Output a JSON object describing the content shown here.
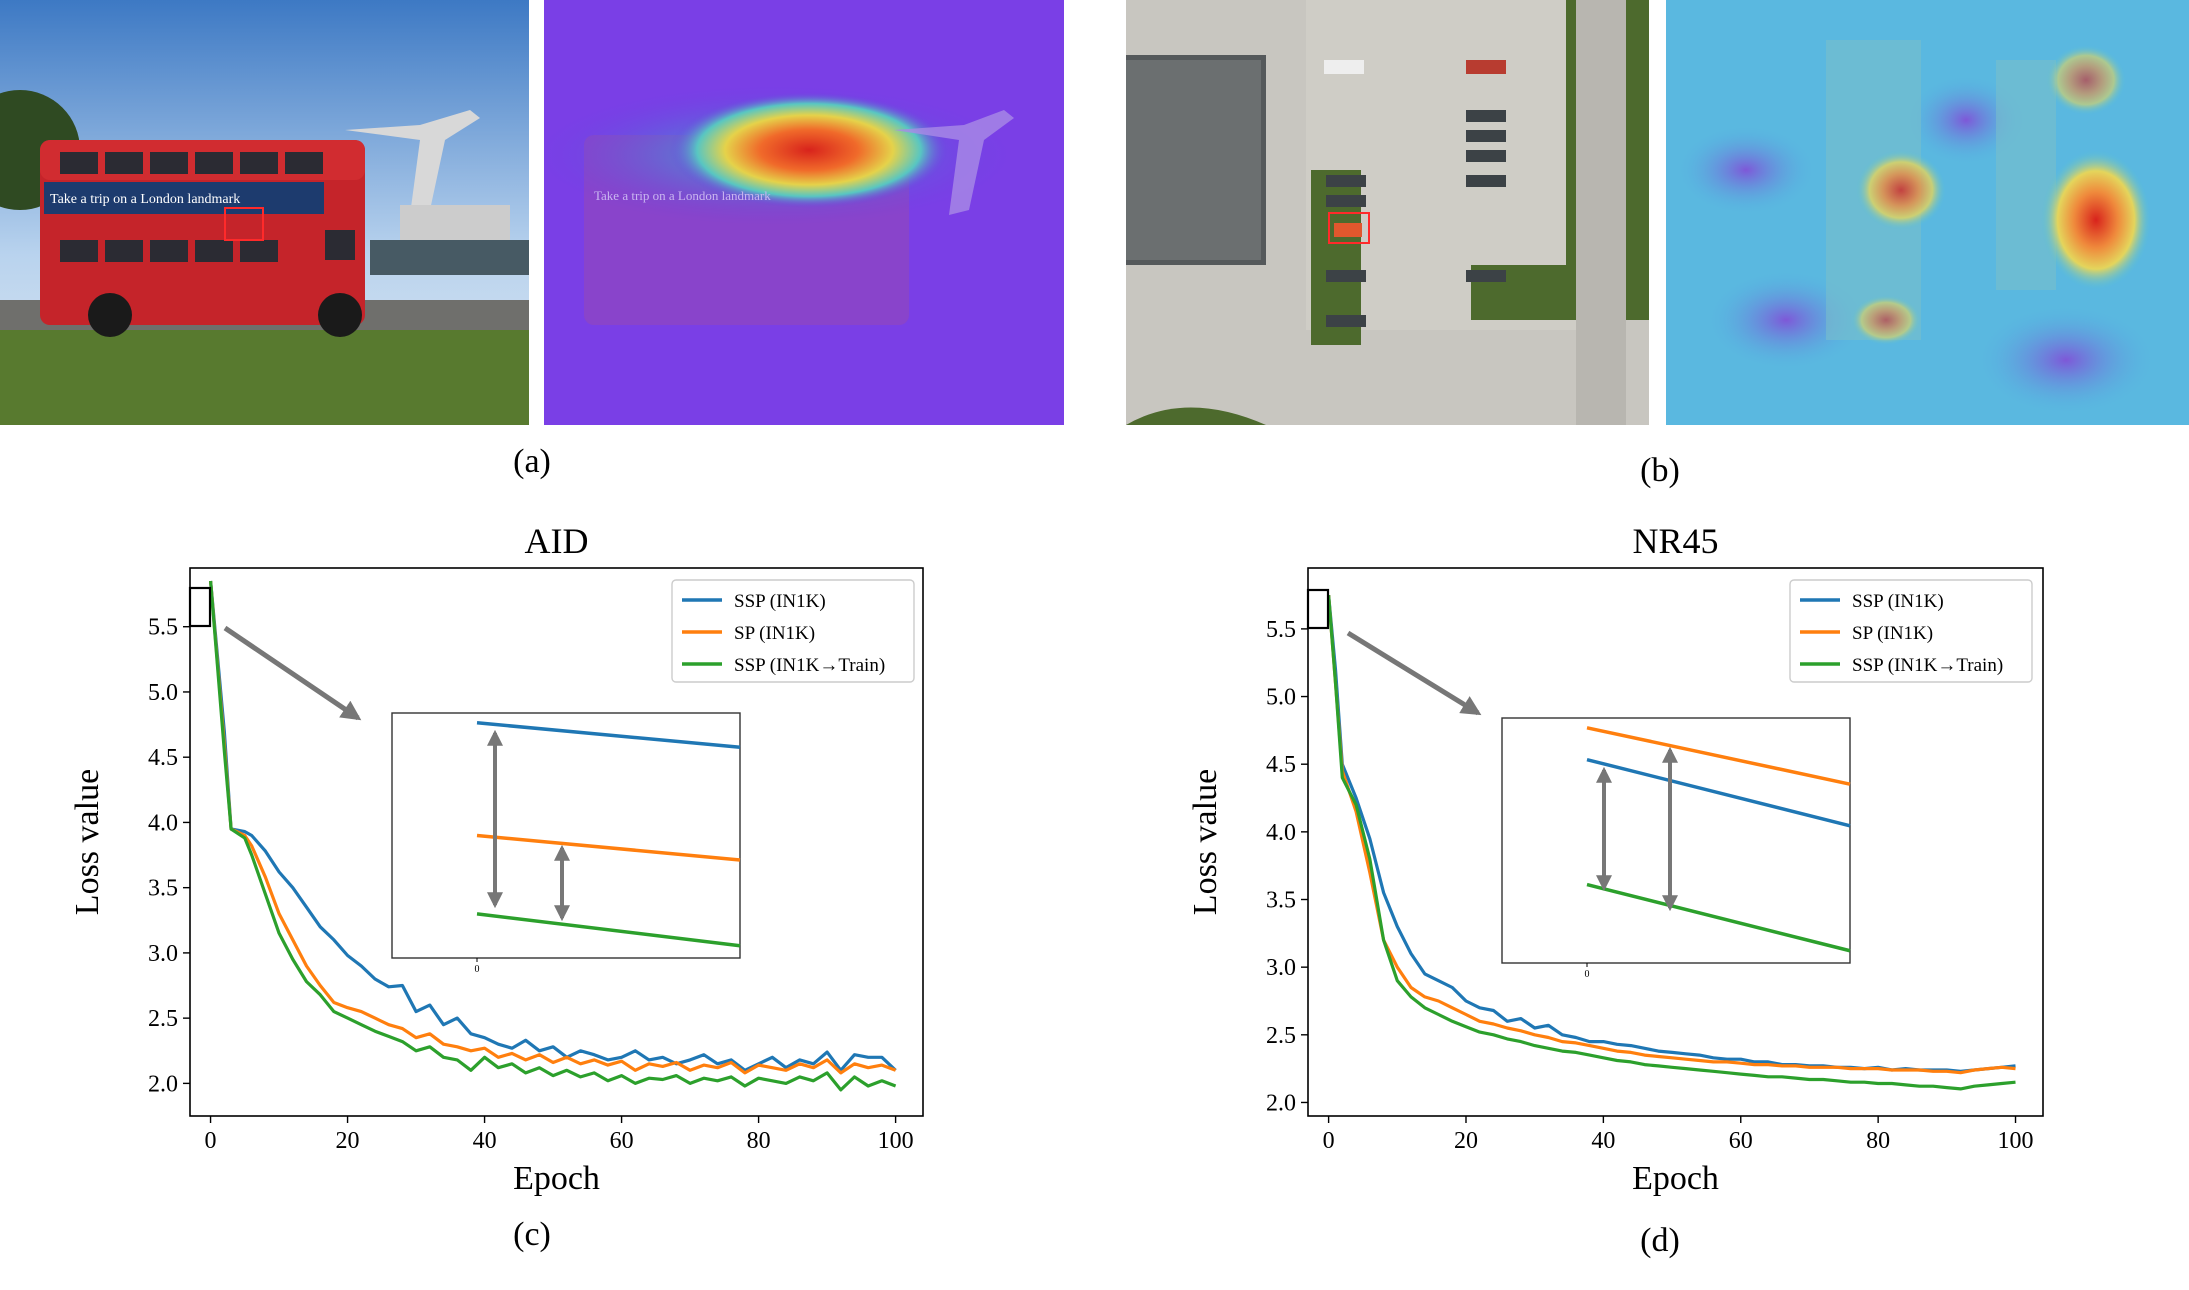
{
  "figure": {
    "captions": [
      "(a)",
      "(b)",
      "(c)",
      "(d)"
    ]
  },
  "images": {
    "a_photo": {
      "sign_text": "Take a trip on a London landmark"
    },
    "a_heatmap": {
      "sign_text": "Take a trip on a London landmark"
    }
  },
  "colors": {
    "ssp_in1k": "#1f77b4",
    "sp_in1k": "#ff7f0e",
    "ssp_in1k_train": "#2ca02c",
    "arrow": "#777777"
  },
  "chart_data": [
    {
      "type": "line",
      "title": "AID",
      "xlabel": "Epoch",
      "ylabel": "Loss value",
      "xlim": [
        -3,
        104
      ],
      "ylim": [
        1.75,
        5.95
      ],
      "xticks": [
        0,
        20,
        40,
        60,
        80,
        100
      ],
      "yticks": [
        2.0,
        2.5,
        3.0,
        3.5,
        4.0,
        4.5,
        5.0,
        5.5
      ],
      "legend_position": "top-right",
      "series": [
        {
          "name": "SSP (IN1K)",
          "color": "#1f77b4",
          "key": "ssp",
          "x": [
            0,
            2,
            3,
            5,
            6,
            8,
            10,
            12,
            14,
            16,
            18,
            20,
            22,
            24,
            26,
            28,
            30,
            32,
            34,
            36,
            38,
            40,
            42,
            44,
            46,
            48,
            50,
            52,
            54,
            56,
            58,
            60,
            62,
            64,
            66,
            68,
            70,
            72,
            74,
            76,
            78,
            80,
            82,
            84,
            86,
            88,
            90,
            92,
            94,
            96,
            98,
            100
          ],
          "y": [
            5.85,
            4.7,
            3.95,
            3.93,
            3.9,
            3.78,
            3.62,
            3.5,
            3.35,
            3.2,
            3.1,
            2.98,
            2.9,
            2.8,
            2.74,
            2.75,
            2.55,
            2.6,
            2.45,
            2.5,
            2.38,
            2.35,
            2.3,
            2.27,
            2.33,
            2.25,
            2.28,
            2.2,
            2.25,
            2.22,
            2.18,
            2.2,
            2.25,
            2.18,
            2.2,
            2.15,
            2.18,
            2.22,
            2.15,
            2.18,
            2.1,
            2.15,
            2.2,
            2.12,
            2.18,
            2.15,
            2.24,
            2.1,
            2.22,
            2.2,
            2.2,
            2.1
          ]
        },
        {
          "name": "SP (IN1K)",
          "color": "#ff7f0e",
          "key": "sp",
          "x": [
            0,
            2,
            3,
            5,
            6,
            8,
            10,
            12,
            14,
            16,
            18,
            20,
            22,
            24,
            26,
            28,
            30,
            32,
            34,
            36,
            38,
            40,
            42,
            44,
            46,
            48,
            50,
            52,
            54,
            56,
            58,
            60,
            62,
            64,
            66,
            68,
            70,
            72,
            74,
            76,
            78,
            80,
            82,
            84,
            86,
            88,
            90,
            92,
            94,
            96,
            98,
            100
          ],
          "y": [
            5.85,
            4.6,
            3.95,
            3.9,
            3.82,
            3.58,
            3.3,
            3.1,
            2.9,
            2.75,
            2.62,
            2.58,
            2.55,
            2.5,
            2.45,
            2.42,
            2.35,
            2.38,
            2.3,
            2.28,
            2.25,
            2.27,
            2.2,
            2.23,
            2.18,
            2.22,
            2.16,
            2.2,
            2.15,
            2.18,
            2.14,
            2.17,
            2.1,
            2.15,
            2.13,
            2.16,
            2.1,
            2.14,
            2.12,
            2.16,
            2.08,
            2.14,
            2.12,
            2.1,
            2.15,
            2.12,
            2.18,
            2.08,
            2.15,
            2.12,
            2.14,
            2.1
          ]
        },
        {
          "name": "SSP (IN1K→Train)",
          "color": "#2ca02c",
          "key": "ssp_train",
          "x": [
            0,
            2,
            3,
            5,
            6,
            8,
            10,
            12,
            14,
            16,
            18,
            20,
            22,
            24,
            26,
            28,
            30,
            32,
            34,
            36,
            38,
            40,
            42,
            44,
            46,
            48,
            50,
            52,
            54,
            56,
            58,
            60,
            62,
            64,
            66,
            68,
            70,
            72,
            74,
            76,
            78,
            80,
            82,
            84,
            86,
            88,
            90,
            92,
            94,
            96,
            98,
            100
          ],
          "y": [
            5.85,
            4.55,
            3.95,
            3.88,
            3.75,
            3.45,
            3.15,
            2.95,
            2.78,
            2.68,
            2.55,
            2.5,
            2.45,
            2.4,
            2.36,
            2.32,
            2.25,
            2.28,
            2.2,
            2.18,
            2.1,
            2.2,
            2.12,
            2.15,
            2.08,
            2.12,
            2.06,
            2.1,
            2.05,
            2.08,
            2.02,
            2.06,
            2.0,
            2.04,
            2.03,
            2.06,
            2.0,
            2.04,
            2.02,
            2.05,
            1.98,
            2.04,
            2.02,
            2.0,
            2.05,
            2.02,
            2.08,
            1.95,
            2.05,
            1.98,
            2.02,
            1.98
          ]
        }
      ],
      "inset": {
        "lines": [
          {
            "key": "ssp",
            "y_start": 0.04,
            "y_end": 0.14
          },
          {
            "key": "sp",
            "y_start": 0.5,
            "y_end": 0.6
          },
          {
            "key": "ssp_train",
            "y_start": 0.82,
            "y_end": 0.95
          }
        ],
        "tick_label": "0"
      }
    },
    {
      "type": "line",
      "title": "NR45",
      "xlabel": "Epoch",
      "ylabel": "Loss value",
      "xlim": [
        -3,
        104
      ],
      "ylim": [
        1.9,
        5.95
      ],
      "xticks": [
        0,
        20,
        40,
        60,
        80,
        100
      ],
      "yticks": [
        2.0,
        2.5,
        3.0,
        3.5,
        4.0,
        4.5,
        5.0,
        5.5
      ],
      "legend_position": "top-right",
      "series": [
        {
          "name": "SSP (IN1K)",
          "color": "#1f77b4",
          "key": "ssp",
          "x": [
            0,
            1,
            2,
            4,
            6,
            8,
            10,
            12,
            14,
            16,
            18,
            20,
            22,
            24,
            26,
            28,
            30,
            32,
            34,
            36,
            38,
            40,
            42,
            44,
            46,
            48,
            50,
            52,
            54,
            56,
            58,
            60,
            62,
            64,
            66,
            68,
            70,
            72,
            74,
            76,
            78,
            80,
            82,
            84,
            86,
            88,
            90,
            92,
            94,
            96,
            98,
            100
          ],
          "y": [
            5.75,
            5.2,
            4.5,
            4.25,
            3.95,
            3.55,
            3.3,
            3.1,
            2.95,
            2.9,
            2.85,
            2.75,
            2.7,
            2.68,
            2.6,
            2.62,
            2.55,
            2.57,
            2.5,
            2.48,
            2.45,
            2.45,
            2.43,
            2.42,
            2.4,
            2.38,
            2.37,
            2.36,
            2.35,
            2.33,
            2.32,
            2.32,
            2.3,
            2.3,
            2.28,
            2.28,
            2.27,
            2.27,
            2.26,
            2.26,
            2.25,
            2.26,
            2.24,
            2.25,
            2.24,
            2.24,
            2.24,
            2.23,
            2.24,
            2.25,
            2.26,
            2.27
          ]
        },
        {
          "name": "SP (IN1K)",
          "color": "#ff7f0e",
          "key": "sp",
          "x": [
            0,
            1,
            2,
            4,
            6,
            8,
            10,
            12,
            14,
            16,
            18,
            20,
            22,
            24,
            26,
            28,
            30,
            32,
            34,
            36,
            38,
            40,
            42,
            44,
            46,
            48,
            50,
            52,
            54,
            56,
            58,
            60,
            62,
            64,
            66,
            68,
            70,
            72,
            74,
            76,
            78,
            80,
            82,
            84,
            86,
            88,
            90,
            92,
            94,
            96,
            98,
            100
          ],
          "y": [
            5.75,
            5.1,
            4.45,
            4.15,
            3.7,
            3.2,
            3.0,
            2.85,
            2.78,
            2.75,
            2.7,
            2.65,
            2.6,
            2.58,
            2.55,
            2.53,
            2.5,
            2.48,
            2.45,
            2.44,
            2.42,
            2.4,
            2.38,
            2.37,
            2.35,
            2.34,
            2.33,
            2.32,
            2.31,
            2.3,
            2.3,
            2.29,
            2.28,
            2.28,
            2.27,
            2.27,
            2.26,
            2.26,
            2.26,
            2.25,
            2.25,
            2.25,
            2.24,
            2.24,
            2.24,
            2.23,
            2.23,
            2.22,
            2.24,
            2.25,
            2.26,
            2.25
          ]
        },
        {
          "name": "SSP (IN1K→Train)",
          "color": "#2ca02c",
          "key": "ssp_train",
          "x": [
            0,
            1,
            2,
            4,
            6,
            8,
            10,
            12,
            14,
            16,
            18,
            20,
            22,
            24,
            26,
            28,
            30,
            32,
            34,
            36,
            38,
            40,
            42,
            44,
            46,
            48,
            50,
            52,
            54,
            56,
            58,
            60,
            62,
            64,
            66,
            68,
            70,
            72,
            74,
            76,
            78,
            80,
            82,
            84,
            86,
            88,
            90,
            92,
            94,
            96,
            98,
            100
          ],
          "y": [
            5.75,
            5.1,
            4.4,
            4.2,
            3.8,
            3.2,
            2.9,
            2.78,
            2.7,
            2.65,
            2.6,
            2.56,
            2.52,
            2.5,
            2.47,
            2.45,
            2.42,
            2.4,
            2.38,
            2.37,
            2.35,
            2.33,
            2.31,
            2.3,
            2.28,
            2.27,
            2.26,
            2.25,
            2.24,
            2.23,
            2.22,
            2.21,
            2.2,
            2.19,
            2.19,
            2.18,
            2.17,
            2.17,
            2.16,
            2.15,
            2.15,
            2.14,
            2.14,
            2.13,
            2.12,
            2.12,
            2.11,
            2.1,
            2.12,
            2.13,
            2.14,
            2.15
          ]
        }
      ],
      "inset": {
        "lines": [
          {
            "key": "sp",
            "y_start": 0.04,
            "y_end": 0.27
          },
          {
            "key": "ssp",
            "y_start": 0.17,
            "y_end": 0.44
          },
          {
            "key": "ssp_train",
            "y_start": 0.68,
            "y_end": 0.95
          }
        ],
        "tick_label": "0"
      }
    }
  ]
}
